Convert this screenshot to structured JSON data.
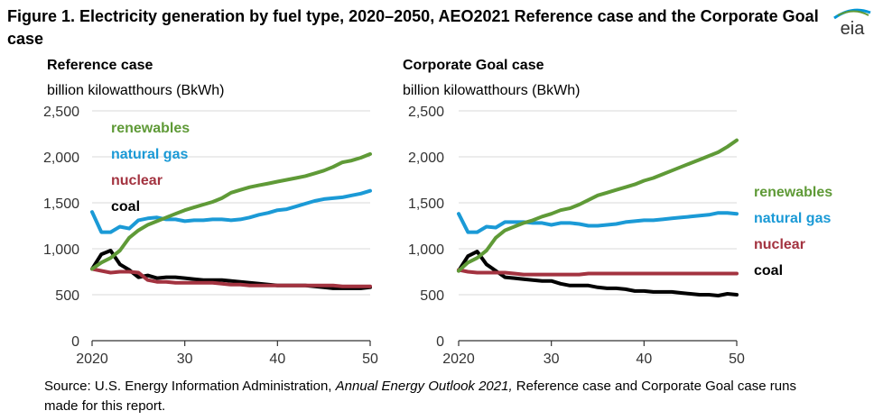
{
  "title": "Figure 1. Electricity generation by fuel type, 2020–2050, AEO2021 Reference case and the Corporate Goal case",
  "logo_text": "eia",
  "source": {
    "prefix": "Source: U.S. Energy Information Administration, ",
    "italic": "Annual Energy Outlook 2021,",
    "suffix": " Reference case and Corporate Goal case runs made for this report."
  },
  "colors": {
    "renewables": "#5f9a37",
    "natural_gas": "#1b9ad6",
    "nuclear": "#a33340",
    "coal": "#000000",
    "logo_blue": "#0096d6",
    "logo_green": "#5f9a37"
  },
  "chart_data": [
    {
      "type": "line",
      "title": "Reference case",
      "ylabel": "billion kilowatthours (BkWh)",
      "ylim": [
        0,
        2500
      ],
      "yticks": [
        0,
        500,
        1000,
        1500,
        2000,
        2500
      ],
      "ytick_labels": [
        "0",
        "500",
        "1,000",
        "1,500",
        "2,000",
        "2,500"
      ],
      "xlim": [
        2020,
        2050
      ],
      "xticks": [
        2020,
        2030,
        2040,
        2050
      ],
      "xtick_labels": [
        "2020",
        "30",
        "40",
        "50"
      ],
      "legend_placement": "upper-left inside plot",
      "x": [
        2020,
        2021,
        2022,
        2023,
        2024,
        2025,
        2026,
        2027,
        2028,
        2029,
        2030,
        2031,
        2032,
        2033,
        2034,
        2035,
        2036,
        2037,
        2038,
        2039,
        2040,
        2041,
        2042,
        2043,
        2044,
        2045,
        2046,
        2047,
        2048,
        2049,
        2050
      ],
      "series": [
        {
          "name": "renewables",
          "color_key": "renewables",
          "values": [
            780,
            850,
            900,
            980,
            1120,
            1200,
            1260,
            1300,
            1340,
            1380,
            1420,
            1450,
            1480,
            1510,
            1550,
            1610,
            1640,
            1670,
            1690,
            1710,
            1730,
            1750,
            1770,
            1790,
            1820,
            1850,
            1890,
            1940,
            1960,
            1990,
            2030
          ]
        },
        {
          "name": "natural gas",
          "color_key": "natural_gas",
          "values": [
            1400,
            1180,
            1180,
            1240,
            1220,
            1310,
            1330,
            1340,
            1320,
            1320,
            1300,
            1310,
            1310,
            1320,
            1320,
            1310,
            1320,
            1340,
            1370,
            1390,
            1420,
            1430,
            1460,
            1490,
            1520,
            1540,
            1550,
            1560,
            1580,
            1600,
            1630
          ]
        },
        {
          "name": "nuclear",
          "color_key": "nuclear",
          "values": [
            780,
            760,
            740,
            750,
            750,
            740,
            660,
            640,
            640,
            630,
            630,
            630,
            630,
            630,
            620,
            610,
            610,
            600,
            600,
            600,
            600,
            600,
            600,
            600,
            600,
            600,
            600,
            590,
            590,
            590,
            590
          ]
        },
        {
          "name": "coal",
          "color_key": "coal",
          "values": [
            780,
            940,
            980,
            830,
            770,
            690,
            710,
            680,
            690,
            690,
            680,
            670,
            660,
            660,
            660,
            650,
            640,
            630,
            620,
            610,
            600,
            600,
            600,
            600,
            590,
            580,
            570,
            570,
            570,
            570,
            580
          ]
        }
      ]
    },
    {
      "type": "line",
      "title": "Corporate Goal case",
      "ylabel": "billion kilowatthours (BkWh)",
      "ylim": [
        0,
        2500
      ],
      "yticks": [
        0,
        500,
        1000,
        1500,
        2000,
        2500
      ],
      "ytick_labels": [
        "0",
        "500",
        "1,000",
        "1,500",
        "2,000",
        "2,500"
      ],
      "xlim": [
        2020,
        2050
      ],
      "xticks": [
        2020,
        2030,
        2040,
        2050
      ],
      "xtick_labels": [
        "2020",
        "30",
        "40",
        "50"
      ],
      "legend_placement": "right of plot",
      "x": [
        2020,
        2021,
        2022,
        2023,
        2024,
        2025,
        2026,
        2027,
        2028,
        2029,
        2030,
        2031,
        2032,
        2033,
        2034,
        2035,
        2036,
        2037,
        2038,
        2039,
        2040,
        2041,
        2042,
        2043,
        2044,
        2045,
        2046,
        2047,
        2048,
        2049,
        2050
      ],
      "series": [
        {
          "name": "renewables",
          "color_key": "renewables",
          "values": [
            760,
            850,
            900,
            980,
            1120,
            1200,
            1240,
            1280,
            1310,
            1350,
            1380,
            1420,
            1440,
            1480,
            1530,
            1580,
            1610,
            1640,
            1670,
            1700,
            1740,
            1770,
            1810,
            1850,
            1890,
            1930,
            1970,
            2010,
            2050,
            2110,
            2180
          ]
        },
        {
          "name": "natural gas",
          "color_key": "natural_gas",
          "values": [
            1380,
            1180,
            1180,
            1240,
            1230,
            1290,
            1290,
            1290,
            1280,
            1280,
            1260,
            1280,
            1280,
            1270,
            1250,
            1250,
            1260,
            1270,
            1290,
            1300,
            1310,
            1310,
            1320,
            1330,
            1340,
            1350,
            1360,
            1370,
            1390,
            1390,
            1380
          ]
        },
        {
          "name": "nuclear",
          "color_key": "nuclear",
          "values": [
            770,
            750,
            740,
            740,
            740,
            740,
            730,
            720,
            720,
            720,
            720,
            720,
            720,
            720,
            730,
            730,
            730,
            730,
            730,
            730,
            730,
            730,
            730,
            730,
            730,
            730,
            730,
            730,
            730,
            730,
            730
          ]
        },
        {
          "name": "coal",
          "color_key": "coal",
          "values": [
            760,
            920,
            970,
            830,
            760,
            690,
            680,
            670,
            660,
            650,
            650,
            620,
            600,
            600,
            600,
            580,
            570,
            570,
            560,
            540,
            540,
            530,
            530,
            530,
            520,
            510,
            500,
            500,
            490,
            510,
            500
          ]
        }
      ]
    }
  ]
}
